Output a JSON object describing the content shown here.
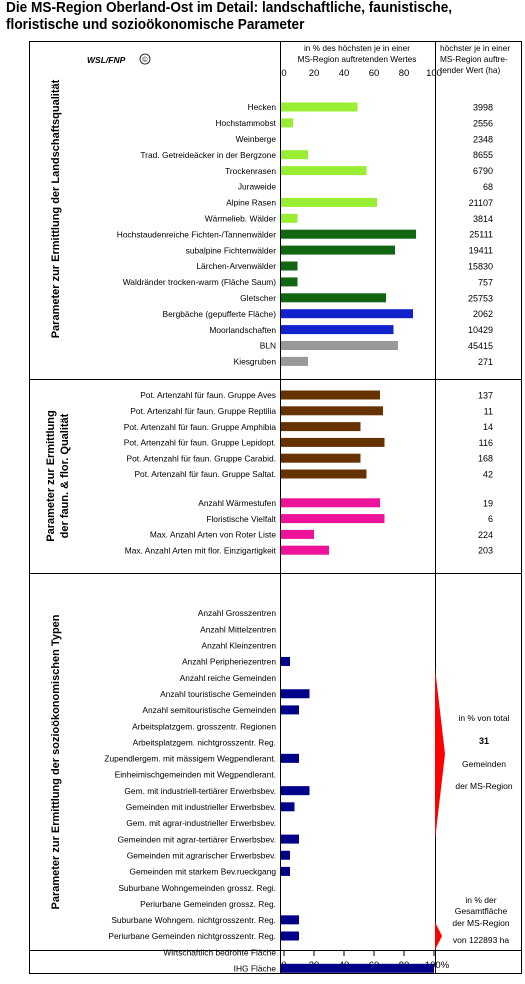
{
  "header": {
    "title_line1": "Die MS-Region Oberland-Ost im Detail: landschaftliche, faunistische,",
    "title_line2": "floristische und sozioökonomische Parameter"
  },
  "logo": {
    "text": "WSL/FNP",
    "copyright": "©"
  },
  "columns": {
    "chart_header_line1": "in % des höchsten je in einer",
    "chart_header_line2": "MS-Region auftretenden Wertes",
    "value_header_line1": "höchster je in einer",
    "value_header_line2": "MS-Region auftre-",
    "value_header_line3": "tender Wert (ha)"
  },
  "sections": [
    {
      "label_line1": "Parameter zur Ermittlung der Landschaftsqualität",
      "label_line2": ""
    },
    {
      "label_line1": "Parameter zur Ermittlung",
      "label_line2": "der faun. & flor. Qualität"
    },
    {
      "label_line1": "Parameter zur Ermittlung der sozioökonomischen Typen",
      "label_line2": ""
    }
  ],
  "annotations": {
    "total_line1": "in % von total",
    "total_value": "31",
    "total_line2": "Gemeinden",
    "total_line3": "der MS-Region",
    "area_line1": "in % der",
    "area_line2": "Gesamtfläche",
    "area_line3": "der MS-Region",
    "area_line4": "von 122893 ha"
  },
  "colors": {
    "light_green": "#99ee33",
    "dark_green": "#116611",
    "blue": "#1122cc",
    "gray": "#999999",
    "brown": "#663300",
    "pink": "#ee1199",
    "navy": "#000088",
    "red": "#ff0000"
  },
  "chart_data": {
    "type": "bar",
    "orientation": "horizontal",
    "xlim": [
      0,
      100
    ],
    "xticks": [
      "0",
      "20",
      "40",
      "60",
      "80",
      "100%"
    ],
    "xticks_top": [
      "0",
      "20",
      "40",
      "60",
      "80",
      "100"
    ],
    "groups": [
      {
        "rows": [
          {
            "label": "Hecken",
            "value": 49,
            "color": "#99ee33",
            "max": "3998"
          },
          {
            "label": "Hochstammobst",
            "value": 6,
            "color": "#99ee33",
            "max": "2556"
          },
          {
            "label": "Weinberge",
            "value": 0,
            "color": "#99ee33",
            "max": "2348"
          },
          {
            "label": "Trad. Getreideäcker in der Bergzone",
            "value": 16,
            "color": "#99ee33",
            "max": "8655"
          },
          {
            "label": "Trockenrasen",
            "value": 55,
            "color": "#99ee33",
            "max": "6790"
          },
          {
            "label": "Juraweide",
            "value": 0,
            "color": "#99ee33",
            "max": "68"
          },
          {
            "label": "Alpine Rasen",
            "value": 62,
            "color": "#99ee33",
            "max": "21107"
          },
          {
            "label": "Wärmelieb. Wälder",
            "value": 9,
            "color": "#99ee33",
            "max": "3814"
          },
          {
            "label": "Hochstaudenreiche Fichten-/Tannenwälder",
            "value": 88,
            "color": "#116611",
            "max": "25111"
          },
          {
            "label": "subalpine Fichtenwälder",
            "value": 74,
            "color": "#116611",
            "max": "19411"
          },
          {
            "label": "Lärchen-Arvenwälder",
            "value": 9,
            "color": "#116611",
            "max": "15830"
          },
          {
            "label": "Waldränder trocken-warm (Fläche Saum)",
            "value": 9,
            "color": "#116611",
            "max": "757"
          },
          {
            "label": "Gletscher",
            "value": 68,
            "color": "#116611",
            "max": "25753"
          },
          {
            "label": "Bergbäche (gepufferte Fläche)",
            "value": 86,
            "color": "#1122cc",
            "max": "2062"
          },
          {
            "label": "Moorlandschaften",
            "value": 73,
            "color": "#1122cc",
            "max": "10429"
          },
          {
            "label": "BLN",
            "value": 76,
            "color": "#999999",
            "max": "45415"
          },
          {
            "label": "Kiesgruben",
            "value": 16,
            "color": "#999999",
            "max": "271"
          }
        ]
      },
      {
        "rows": [
          {
            "label": "Pot. Artenzahl für faun. Gruppe Aves",
            "value": 64,
            "color": "#663300",
            "max": "137"
          },
          {
            "label": "Pot. Artenzahl für faun. Gruppe Reptilia",
            "value": 66,
            "color": "#663300",
            "max": "11"
          },
          {
            "label": "Pot. Artenzahl für faun. Gruppe Amphibia",
            "value": 51,
            "color": "#663300",
            "max": "14"
          },
          {
            "label": "Pot. Artenzahl für faun. Gruppe Lepidopt.",
            "value": 67,
            "color": "#663300",
            "max": "116"
          },
          {
            "label": "Pot. Artenzahl für faun. Gruppe Carabid.",
            "value": 51,
            "color": "#663300",
            "max": "168"
          },
          {
            "label": "Pot. Artenzahl für faun. Gruppe Saltat.",
            "value": 55,
            "color": "#663300",
            "max": "42"
          },
          {
            "label": "Anzahl Wärmestufen",
            "value": 64,
            "color": "#ee1199",
            "max": "19"
          },
          {
            "label": "Floristische Vielfalt",
            "value": 67,
            "color": "#ee1199",
            "max": "6"
          },
          {
            "label": "Max. Anzahl Arten von Roter Liste",
            "value": 20,
            "color": "#ee1199",
            "max": "224"
          },
          {
            "label": "Max. Anzahl Arten mit flor. Einzigartigkeit",
            "value": 30,
            "color": "#ee1199",
            "max": "203"
          }
        ]
      },
      {
        "rows": [
          {
            "label": "Anzahl Grosszentren",
            "value": 0,
            "color": "#000088"
          },
          {
            "label": "Anzahl Mittelzentren",
            "value": 0,
            "color": "#000088"
          },
          {
            "label": "Anzahl Kleinzentren",
            "value": 0,
            "color": "#000088"
          },
          {
            "label": "Anzahl Peripheriezentren",
            "value": 4,
            "color": "#000088"
          },
          {
            "label": "Anzahl reiche Gemeinden",
            "value": 0,
            "color": "#000088"
          },
          {
            "label": "Anzahl touristische Gemeinden",
            "value": 17,
            "color": "#000088"
          },
          {
            "label": "Anzahl semitouristische Gemeinden",
            "value": 10,
            "color": "#000088"
          },
          {
            "label": "Arbeitsplatzgem. grosszentr. Regionen",
            "value": 0,
            "color": "#000088"
          },
          {
            "label": "Arbeitsplatzgem. nichtgrosszentr. Reg.",
            "value": 0,
            "color": "#000088"
          },
          {
            "label": "Zupendlergem. mit mässigem Wegpendlerant.",
            "value": 10,
            "color": "#000088"
          },
          {
            "label": "Einheimischgemeinden mit Wegpendlerant.",
            "value": 0,
            "color": "#000088"
          },
          {
            "label": "Gem. mit industriell-tertiärer Erwerbsbev.",
            "value": 17,
            "color": "#000088"
          },
          {
            "label": "Gemeinden mit industrieller Erwerbsbev.",
            "value": 7,
            "color": "#000088"
          },
          {
            "label": "Gem. mit agrar-industrieller Erwerbsbev.",
            "value": 0,
            "color": "#000088"
          },
          {
            "label": "Gemeinden mit agrar-tertiärer Erwerbsbev.",
            "value": 10,
            "color": "#000088"
          },
          {
            "label": "Gemeinden mit agrarischer Erwerbsbev.",
            "value": 4,
            "color": "#000088"
          },
          {
            "label": "Gemeinden mit starkem Bev.rueckgang",
            "value": 4,
            "color": "#000088"
          },
          {
            "label": "Suburbane Wohngemeinden grossz. Regi.",
            "value": 0,
            "color": "#000088"
          },
          {
            "label": "Periurbane Gemeinden grossz. Reg.",
            "value": 0,
            "color": "#000088"
          },
          {
            "label": "Suburbane Wohngem. nichtgrosszentr. Reg.",
            "value": 10,
            "color": "#000088"
          },
          {
            "label": "Periurbane Gemeinden nichtgrosszentr. Reg.",
            "value": 10,
            "color": "#000088"
          },
          {
            "label": "Wirtschaftlich bedrohte Fläche",
            "value": 0,
            "color": "#000088"
          },
          {
            "label": "IHG Fläche",
            "value": 100,
            "color": "#000088"
          }
        ]
      }
    ]
  }
}
